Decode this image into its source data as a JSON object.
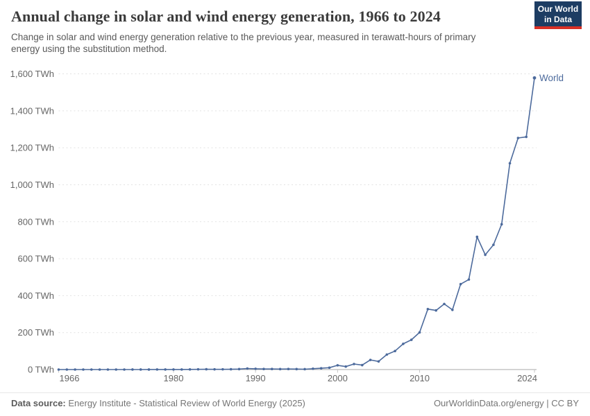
{
  "header": {
    "title": "Annual change in solar and wind energy generation, 1966 to 2024",
    "subtitle": "Change in solar and wind energy generation relative to the previous year, measured in terawatt-hours of primary energy using the substitution method.",
    "logo": {
      "line1": "Our World",
      "line2": "in Data",
      "bg_color": "#1d3d63",
      "accent_color": "#d93025"
    }
  },
  "chart_data": {
    "type": "line",
    "title": "Annual change in solar and wind energy generation, 1966 to 2024",
    "xlabel": "",
    "ylabel": "",
    "unit": "TWh",
    "xlim": [
      1966,
      2024
    ],
    "ylim": [
      0,
      1600
    ],
    "grid": "horizontal-dashed",
    "legend_position": "end-of-line-label",
    "x_ticks": [
      1966,
      1980,
      1990,
      2000,
      2010,
      2024
    ],
    "x_tick_labels": [
      "1966",
      "1980",
      "1990",
      "2000",
      "2010",
      "2024"
    ],
    "y_tick_values": [
      0,
      200,
      400,
      600,
      800,
      1000,
      1200,
      1400,
      1600
    ],
    "y_tick_labels": [
      "0 TWh",
      "200 TWh",
      "400 TWh",
      "600 TWh",
      "800 TWh",
      "1,000 TWh",
      "1,200 TWh",
      "1,400 TWh",
      "1,600 TWh"
    ],
    "series": [
      {
        "name": "World",
        "color": "#4c6a9c",
        "x": [
          1966,
          1967,
          1968,
          1969,
          1970,
          1971,
          1972,
          1973,
          1974,
          1975,
          1976,
          1977,
          1978,
          1979,
          1980,
          1981,
          1982,
          1983,
          1984,
          1985,
          1986,
          1987,
          1988,
          1989,
          1990,
          1991,
          1992,
          1993,
          1994,
          1995,
          1996,
          1997,
          1998,
          1999,
          2000,
          2001,
          2002,
          2003,
          2004,
          2005,
          2006,
          2007,
          2008,
          2009,
          2010,
          2011,
          2012,
          2013,
          2014,
          2015,
          2016,
          2017,
          2018,
          2019,
          2020,
          2021,
          2022,
          2023,
          2024
        ],
        "values": [
          0,
          0,
          0,
          0,
          0,
          0,
          0,
          0,
          0,
          0.1,
          0.1,
          0.2,
          0.3,
          0.4,
          0.3,
          0.5,
          0.8,
          1.2,
          1.5,
          1.3,
          1.2,
          1.5,
          2.5,
          5.5,
          4,
          3,
          3,
          2.5,
          3,
          2.5,
          2,
          4.5,
          7,
          10,
          23,
          16,
          30,
          24,
          52,
          44,
          81,
          100,
          139,
          161,
          201,
          327,
          320,
          355,
          323,
          462,
          487,
          718,
          621,
          675,
          786,
          1116,
          1253,
          1259,
          1578
        ]
      }
    ]
  },
  "colors": {
    "line": "#4c6a9c",
    "gridline": "#e2e2e2",
    "axis": "#a8a8a8",
    "tick": "#c4c4c4",
    "tick_label": "#666666"
  },
  "footer": {
    "datasource_label": "Data source:",
    "datasource_value": " Energy Institute - Statistical Review of World Energy (2025)",
    "credit": "OurWorldinData.org/energy | CC BY"
  }
}
